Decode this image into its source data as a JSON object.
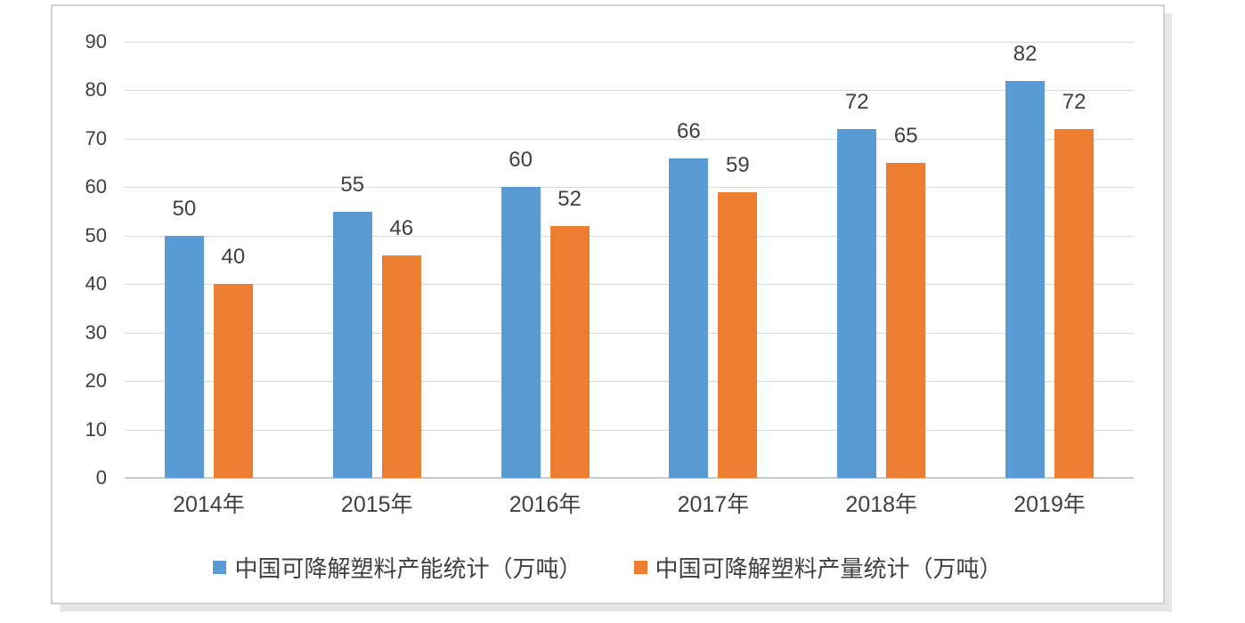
{
  "chart_data": {
    "type": "bar",
    "categories": [
      "2014年",
      "2015年",
      "2016年",
      "2017年",
      "2018年",
      "2019年"
    ],
    "series": [
      {
        "name": "中国可降解塑料产能统计（万吨）",
        "values": [
          50,
          55,
          60,
          66,
          72,
          82
        ],
        "color": "#5B9BD5"
      },
      {
        "name": "中国可降解塑料产量统计（万吨）",
        "values": [
          40,
          46,
          52,
          59,
          65,
          72
        ],
        "color": "#ED7D31"
      }
    ],
    "yticks": [
      0,
      10,
      20,
      30,
      40,
      50,
      60,
      70,
      80,
      90
    ],
    "ylim": [
      0,
      90
    ],
    "grid": true,
    "legend_position": "bottom",
    "data_labels": true
  },
  "colors": {
    "series_blue": "#5B9BD5",
    "series_orange": "#ED7D31",
    "gridline": "#d9d9d9",
    "axis_line": "#c9c9c9",
    "text": "#404040",
    "frame_border": "#d2d2d2",
    "frame_shadow": "#e6e6e6",
    "background": "#ffffff"
  }
}
